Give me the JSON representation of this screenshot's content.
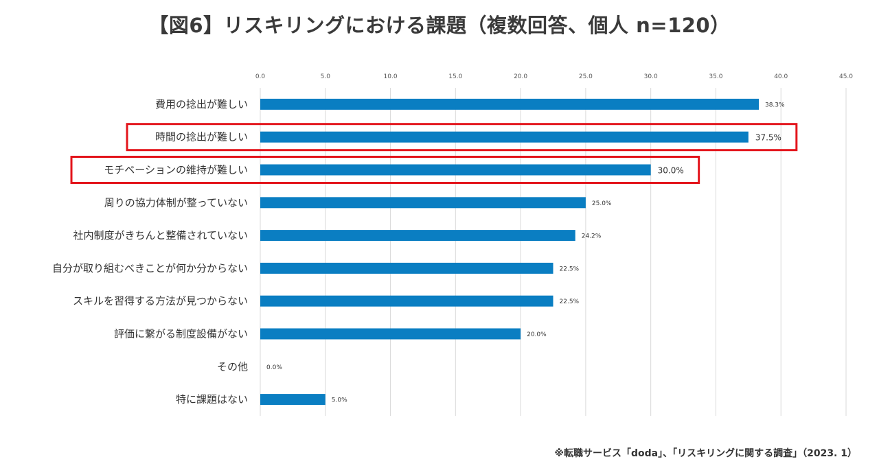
{
  "chart_data": {
    "type": "bar",
    "orientation": "horizontal",
    "title": "【図6】リスキリングにおける課題（複数回答、個人 n=120）",
    "categories": [
      "費用の捻出が難しい",
      "時間の捻出が難しい",
      "モチベーションの維持が難しい",
      "周りの協力体制が整っていない",
      "社内制度がきちんと整備されていない",
      "自分が取り組むべきことが何か分からない",
      "スキルを習得する方法が見つからない",
      "評価に繋がる制度設備がない",
      "その他",
      "特に課題はない"
    ],
    "values": [
      38.3,
      37.5,
      30.0,
      25.0,
      24.2,
      22.5,
      22.5,
      20.0,
      0.0,
      5.0
    ],
    "value_labels": [
      "38.3%",
      "37.5%",
      "30.0%",
      "25.0%",
      "24.2%",
      "22.5%",
      "22.5%",
      "20.0%",
      "0.0%",
      "5.0%"
    ],
    "highlighted": [
      false,
      true,
      true,
      false,
      false,
      false,
      false,
      false,
      false,
      false
    ],
    "xlim": [
      0,
      45
    ],
    "xticks": [
      "0.0",
      "5.0",
      "10.0",
      "15.0",
      "20.0",
      "25.0",
      "30.0",
      "35.0",
      "40.0",
      "45.0"
    ],
    "axis_position": "top",
    "grid": true,
    "bar_color": "#0a7ec2",
    "highlight_color": "#e3141b",
    "xlabel": "",
    "ylabel": ""
  },
  "source_note": "※転職サービス「doda」、「リスキリングに関する調査」（2023. 1）"
}
